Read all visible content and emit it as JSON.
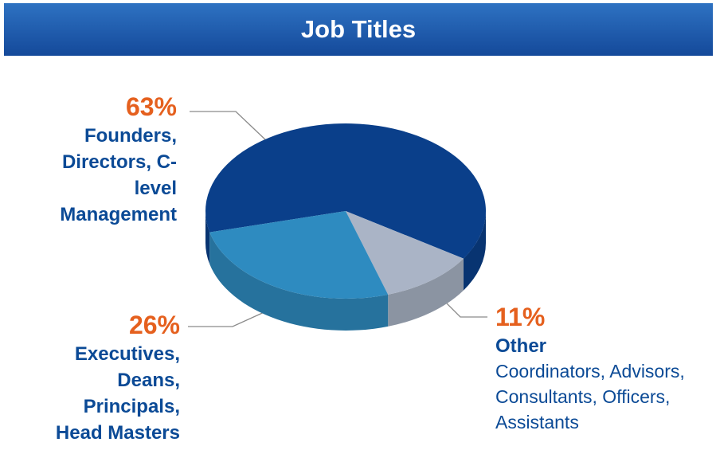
{
  "chart_data": {
    "type": "pie",
    "title": "Job Titles",
    "categories": [
      "Founders, Directors, C-level Management",
      "Other",
      "Executives, Deans, Principals, Head Masters"
    ],
    "values": [
      63,
      11,
      26
    ],
    "value_labels": [
      "63%",
      "11%",
      "26%"
    ],
    "other_description": "Coordinators, Advisors, Consultants, Officers, Assistants",
    "colors": [
      "#0a3f8a",
      "#aab4c6",
      "#2e8bc0"
    ]
  }
}
